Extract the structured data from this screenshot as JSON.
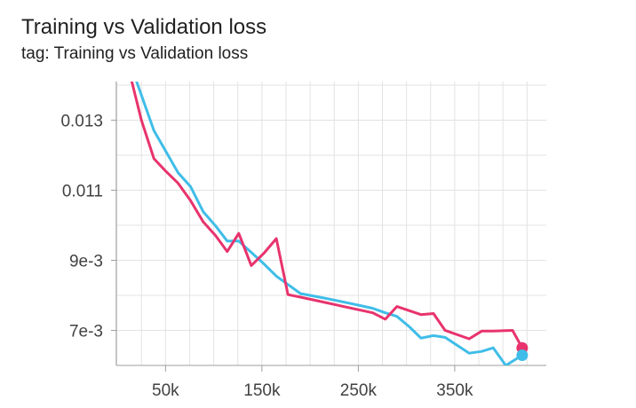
{
  "chart_data": {
    "type": "line",
    "title": "Training vs Validation loss",
    "subtitle": "tag: Training vs Validation loss",
    "xlabel": "",
    "ylabel": "",
    "xlim": [
      -1000,
      445000
    ],
    "ylim": [
      0.006,
      0.0141
    ],
    "x_ticks": [
      50000,
      150000,
      250000,
      350000
    ],
    "x_tick_labels": [
      "50k",
      "150k",
      "250k",
      "350k"
    ],
    "y_ticks": [
      0.007,
      0.009,
      0.011,
      0.013
    ],
    "y_tick_labels": [
      "7e-3",
      "9e-3",
      "0.011",
      "0.013"
    ],
    "grid": true,
    "legend": "none",
    "series": [
      {
        "color": "#e8336d",
        "x": [
          15000,
          25000,
          38000,
          50000,
          63000,
          76000,
          89000,
          102000,
          114000,
          126000,
          139000,
          152000,
          165000,
          177000,
          190000,
          215000,
          240000,
          265000,
          278000,
          290000,
          315000,
          328000,
          340000,
          365000,
          378000,
          390000,
          410000,
          420000
        ],
        "y": [
          0.0141,
          0.013,
          0.0119,
          0.01155,
          0.0112,
          0.0107,
          0.0101,
          0.0097,
          0.00925,
          0.00977,
          0.00885,
          0.0092,
          0.00962,
          0.00802,
          0.00795,
          0.0078,
          0.00765,
          0.0075,
          0.00732,
          0.00768,
          0.00745,
          0.00748,
          0.007,
          0.00676,
          0.00698,
          0.00698,
          0.007,
          0.0065
        ]
      },
      {
        "color": "#3fbde8",
        "x": [
          20000,
          38000,
          63000,
          76000,
          89000,
          102000,
          114000,
          126000,
          152000,
          165000,
          190000,
          215000,
          240000,
          265000,
          278000,
          290000,
          303000,
          315000,
          328000,
          340000,
          365000,
          378000,
          390000,
          403000,
          420000
        ],
        "y": [
          0.0141,
          0.0127,
          0.0115,
          0.0111,
          0.01039,
          0.00998,
          0.00955,
          0.00955,
          0.0089,
          0.00855,
          0.00805,
          0.00792,
          0.00778,
          0.00763,
          0.0075,
          0.0074,
          0.0071,
          0.00678,
          0.00685,
          0.0068,
          0.00635,
          0.0064,
          0.0065,
          0.006,
          0.00629
        ]
      }
    ]
  }
}
